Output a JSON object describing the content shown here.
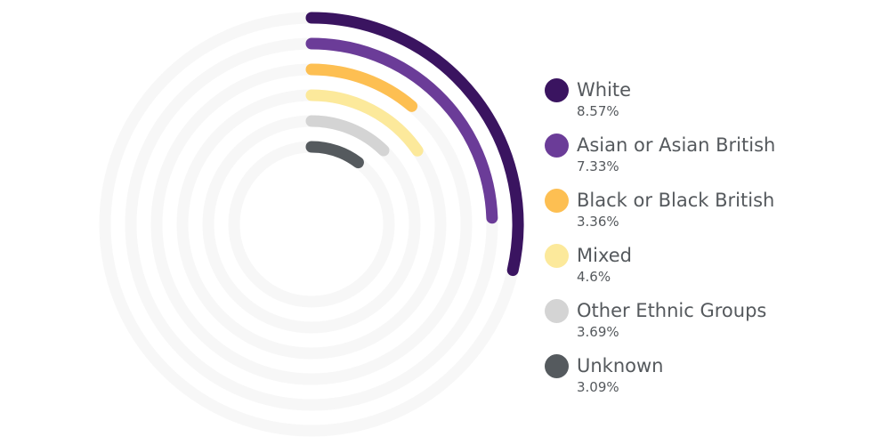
{
  "chart_data": {
    "type": "radial-bar",
    "title": "",
    "unit": "%",
    "max_value": 30,
    "grid": false,
    "legend_position": "right",
    "series": [
      {
        "name": "White",
        "value": 8.57,
        "value_label": "8.57%",
        "color": "#3a1460"
      },
      {
        "name": "Asian or Asian British",
        "value": 7.33,
        "value_label": "7.33%",
        "color": "#6b3c98"
      },
      {
        "name": "Black or Black British",
        "value": 3.36,
        "value_label": "3.36%",
        "color": "#fdbf52"
      },
      {
        "name": "Mixed",
        "value": 4.6,
        "value_label": "4.6%",
        "color": "#fce99b"
      },
      {
        "name": "Other Ethnic Groups",
        "value": 3.69,
        "value_label": "3.69%",
        "color": "#d4d4d4"
      },
      {
        "name": "Unknown",
        "value": 3.09,
        "value_label": "3.09%",
        "color": "#555a5e"
      }
    ],
    "track_color": "#f7f7f7"
  }
}
